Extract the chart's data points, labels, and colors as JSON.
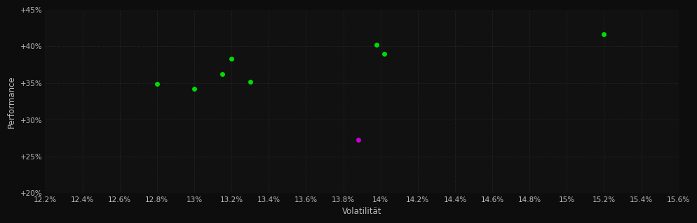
{
  "background_color": "#0d0d0d",
  "plot_bg_color": "#111111",
  "grid_color": "#444444",
  "text_color": "#bbbbbb",
  "xlabel": "Volatilität",
  "ylabel": "Performance",
  "xlim": [
    0.122,
    0.156
  ],
  "ylim": [
    0.2,
    0.45
  ],
  "xticks": [
    0.122,
    0.124,
    0.126,
    0.128,
    0.13,
    0.132,
    0.134,
    0.136,
    0.138,
    0.14,
    0.142,
    0.144,
    0.146,
    0.148,
    0.15,
    0.152,
    0.154,
    0.156
  ],
  "xtick_labels": [
    "12.2%",
    "12.4%",
    "12.6%",
    "12.8%",
    "13%",
    "13.2%",
    "13.4%",
    "13.6%",
    "13.8%",
    "14%",
    "14.2%",
    "14.4%",
    "14.6%",
    "14.8%",
    "15%",
    "15.2%",
    "15.4%",
    "15.6%"
  ],
  "ytick_labels": [
    "+20%",
    "+25%",
    "+30%",
    "+35%",
    "+40%",
    "+45%"
  ],
  "yticks": [
    0.2,
    0.25,
    0.3,
    0.35,
    0.4,
    0.45
  ],
  "green_points": [
    [
      0.128,
      0.349
    ],
    [
      0.13,
      0.342
    ],
    [
      0.132,
      0.383
    ],
    [
      0.1315,
      0.362
    ],
    [
      0.133,
      0.352
    ],
    [
      0.1398,
      0.402
    ],
    [
      0.1402,
      0.39
    ],
    [
      0.152,
      0.416
    ]
  ],
  "magenta_points": [
    [
      0.1388,
      0.273
    ]
  ],
  "green_color": "#00dd00",
  "magenta_color": "#cc00cc",
  "marker_size": 5
}
